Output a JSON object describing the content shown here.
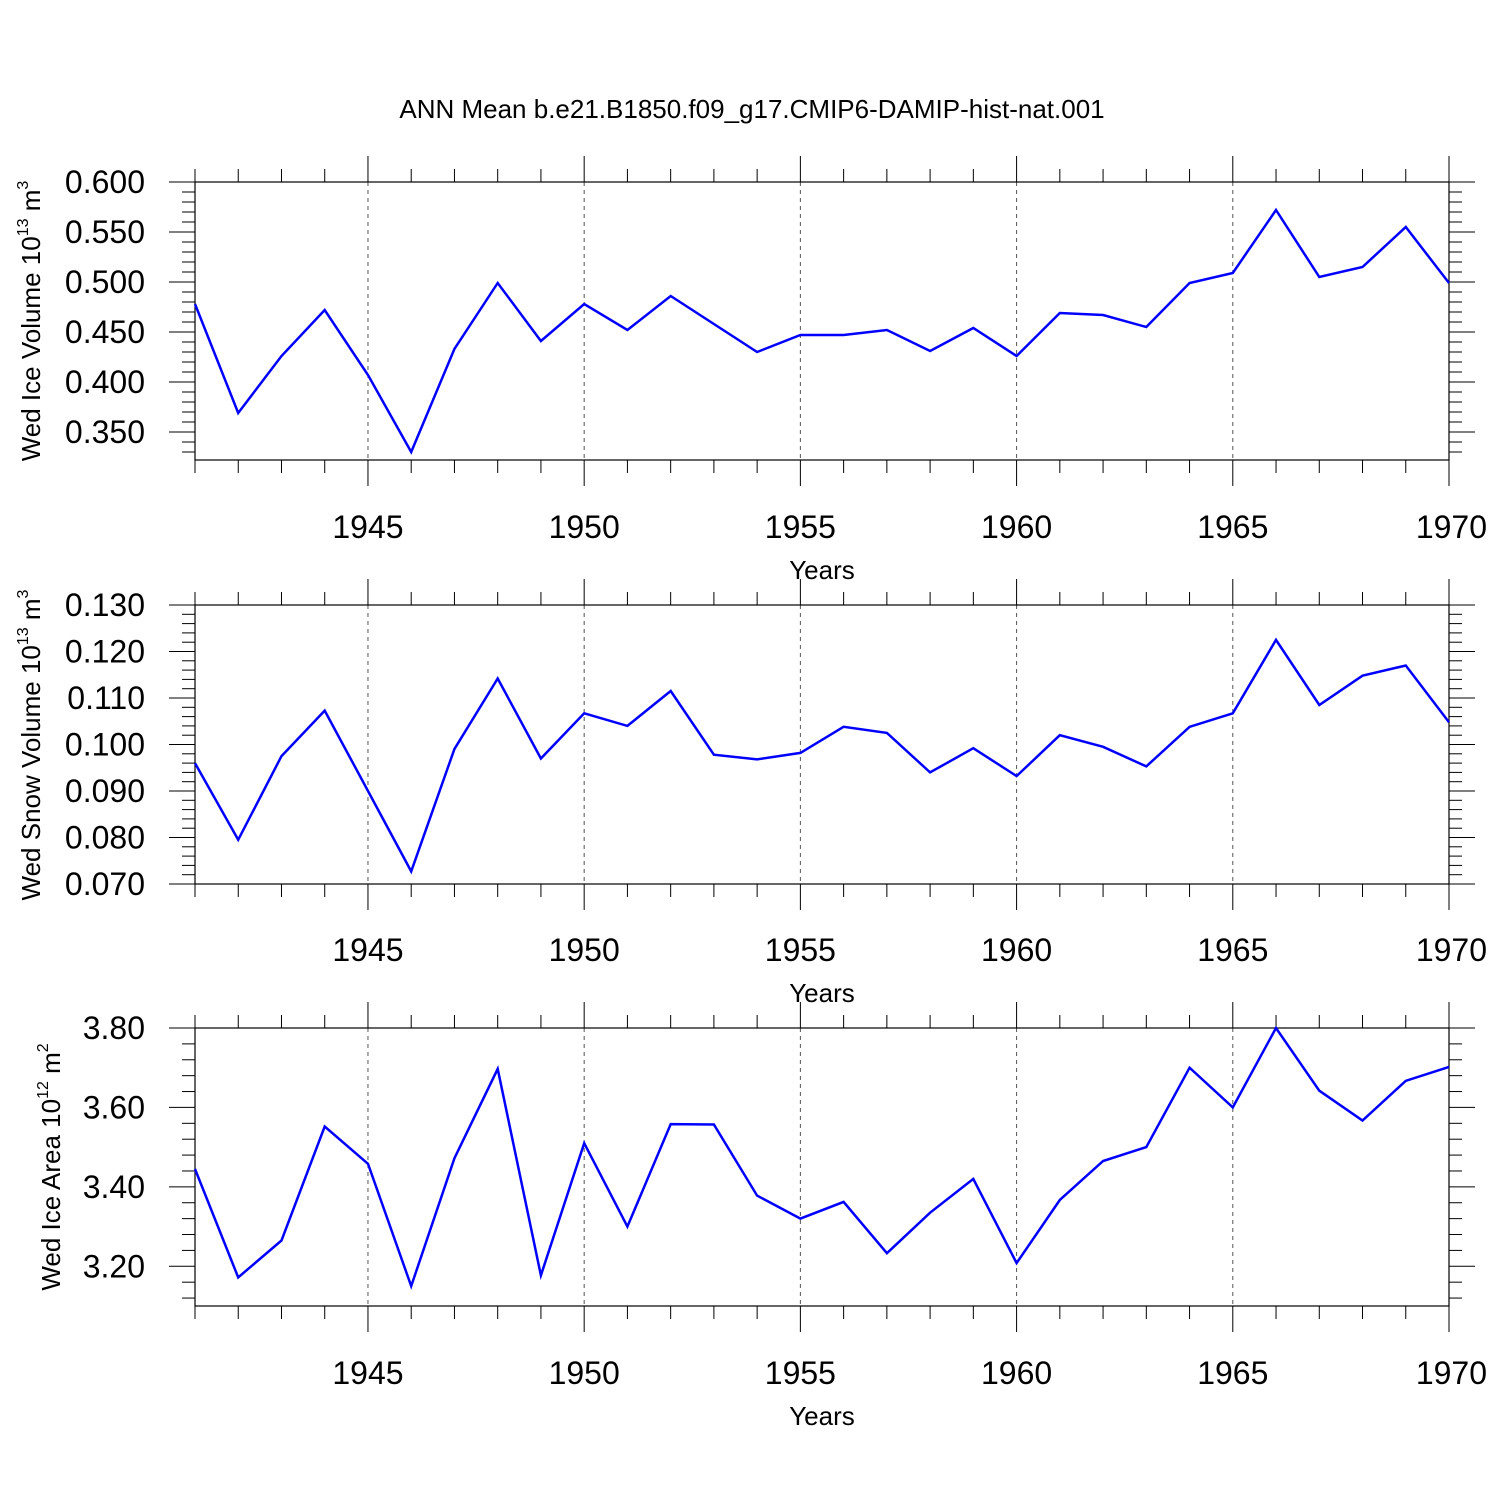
{
  "title": "ANN Mean b.e21.B1850.f09_g17.CMIP6-DAMIP-hist-nat.001",
  "colors": {
    "line": "#0000ff",
    "axis": "#000000",
    "grid": "#555555"
  },
  "chart_data": [
    {
      "type": "line",
      "ylabel": {
        "main": "Wed Ice Volume 10",
        "sup": "13",
        "unit": " m",
        "unit_sup": "3"
      },
      "xlabel": "Years",
      "xlim": [
        1941,
        1970
      ],
      "ylim": [
        0.322,
        0.6
      ],
      "yticks": [
        0.35,
        0.4,
        0.45,
        0.5,
        0.55,
        0.6
      ],
      "ytick_labels": [
        "0.350",
        "0.400",
        "0.450",
        "0.500",
        "0.550",
        "0.600"
      ],
      "xticks": [
        1945,
        1950,
        1955,
        1960,
        1965,
        1970
      ],
      "xtick_labels": [
        "1945",
        "1950",
        "1955",
        "1960",
        "1965",
        "1970"
      ],
      "grid": "vertical dashed at major x ticks",
      "x": [
        1941,
        1942,
        1943,
        1944,
        1945,
        1946,
        1947,
        1948,
        1949,
        1950,
        1951,
        1952,
        1953,
        1954,
        1955,
        1956,
        1957,
        1958,
        1959,
        1960,
        1961,
        1962,
        1963,
        1964,
        1965,
        1966,
        1967,
        1968,
        1969,
        1970
      ],
      "values": [
        0.478,
        0.369,
        0.426,
        0.472,
        0.407,
        0.33,
        0.433,
        0.499,
        0.441,
        0.478,
        0.452,
        0.486,
        0.458,
        0.43,
        0.447,
        0.447,
        0.452,
        0.431,
        0.454,
        0.426,
        0.469,
        0.467,
        0.455,
        0.499,
        0.509,
        0.572,
        0.505,
        0.515,
        0.555,
        0.499
      ]
    },
    {
      "type": "line",
      "ylabel": {
        "main": "Wed Snow Volume 10",
        "sup": "13",
        "unit": " m",
        "unit_sup": "3"
      },
      "xlabel": "Years",
      "xlim": [
        1941,
        1970
      ],
      "ylim": [
        0.07,
        0.13
      ],
      "yticks": [
        0.07,
        0.08,
        0.09,
        0.1,
        0.11,
        0.12,
        0.13
      ],
      "ytick_labels": [
        "0.070",
        "0.080",
        "0.090",
        "0.100",
        "0.110",
        "0.120",
        "0.130"
      ],
      "xticks": [
        1945,
        1950,
        1955,
        1960,
        1965,
        1970
      ],
      "xtick_labels": [
        "1945",
        "1950",
        "1955",
        "1960",
        "1965",
        "1970"
      ],
      "grid": "vertical dashed at major x ticks",
      "x": [
        1941,
        1942,
        1943,
        1944,
        1945,
        1946,
        1947,
        1948,
        1949,
        1950,
        1951,
        1952,
        1953,
        1954,
        1955,
        1956,
        1957,
        1958,
        1959,
        1960,
        1961,
        1962,
        1963,
        1964,
        1965,
        1966,
        1967,
        1968,
        1969,
        1970
      ],
      "values": [
        0.096,
        0.0795,
        0.0975,
        0.1073,
        0.09,
        0.0727,
        0.099,
        0.1142,
        0.097,
        0.1067,
        0.104,
        0.1115,
        0.0978,
        0.0968,
        0.0982,
        0.1038,
        0.1025,
        0.094,
        0.0992,
        0.0932,
        0.102,
        0.0995,
        0.0953,
        0.1038,
        0.1067,
        0.1225,
        0.1085,
        0.1148,
        0.117,
        0.1048
      ]
    },
    {
      "type": "line",
      "ylabel": {
        "main": "Wed Ice Area 10",
        "sup": "12",
        "unit": " m",
        "unit_sup": "2"
      },
      "xlabel": "Years",
      "xlim": [
        1941,
        1970
      ],
      "ylim": [
        3.1,
        3.8
      ],
      "yticks": [
        3.2,
        3.4,
        3.6,
        3.8
      ],
      "ytick_labels": [
        "3.20",
        "3.40",
        "3.60",
        "3.80"
      ],
      "xticks": [
        1945,
        1950,
        1955,
        1960,
        1965,
        1970
      ],
      "xtick_labels": [
        "1945",
        "1950",
        "1955",
        "1960",
        "1965",
        "1970"
      ],
      "grid": "vertical dashed at major x ticks",
      "x": [
        1941,
        1942,
        1943,
        1944,
        1945,
        1946,
        1947,
        1948,
        1949,
        1950,
        1951,
        1952,
        1953,
        1954,
        1955,
        1956,
        1957,
        1958,
        1959,
        1960,
        1961,
        1962,
        1963,
        1964,
        1965,
        1966,
        1967,
        1968,
        1969,
        1970
      ],
      "values": [
        3.445,
        3.172,
        3.265,
        3.552,
        3.458,
        3.15,
        3.472,
        3.697,
        3.177,
        3.51,
        3.3,
        3.558,
        3.557,
        3.378,
        3.32,
        3.362,
        3.233,
        3.335,
        3.42,
        3.208,
        3.367,
        3.465,
        3.5,
        3.7,
        3.6,
        3.8,
        3.642,
        3.567,
        3.667,
        3.702
      ]
    }
  ]
}
